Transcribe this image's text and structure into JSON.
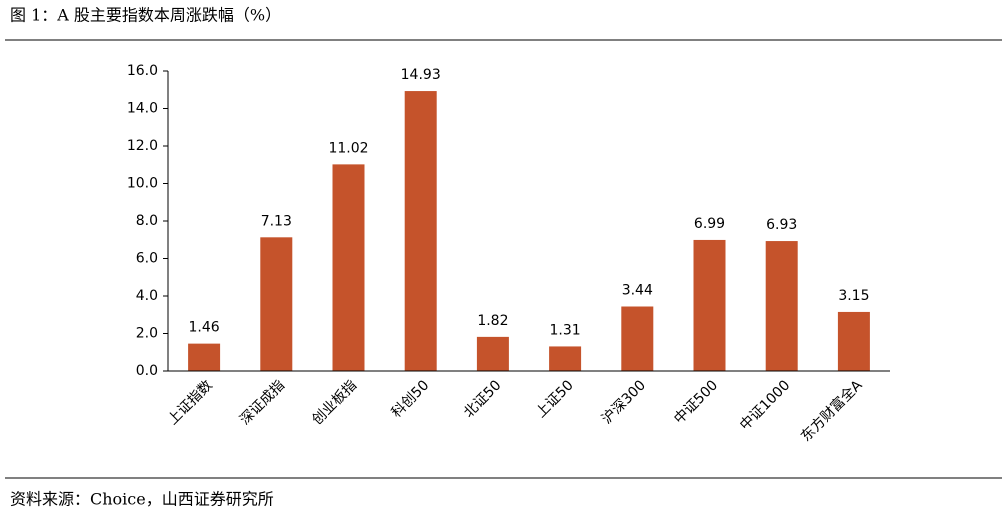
{
  "chart_data": {
    "type": "bar",
    "title": "图 1：A 股主要指数本周涨跌幅（%）",
    "source": "资料来源：Choice，山西证券研究所",
    "categories": [
      "上证指数",
      "深证成指",
      "创业板指",
      "科创50",
      "北证50",
      "上证50",
      "沪深300",
      "中证500",
      "中证1000",
      "东方财富全A"
    ],
    "values": [
      1.46,
      7.13,
      11.02,
      14.93,
      1.82,
      1.31,
      3.44,
      6.99,
      6.93,
      3.15
    ],
    "color": "#c5532b",
    "ylim": [
      0,
      16
    ],
    "yticks": [
      {
        "value": 0,
        "label": "0.0"
      },
      {
        "value": 2,
        "label": "2.0"
      },
      {
        "value": 4,
        "label": "4.0"
      },
      {
        "value": 6,
        "label": "6.0"
      },
      {
        "value": 8,
        "label": "8.0"
      },
      {
        "value": 10,
        "label": "10.0"
      },
      {
        "value": 12,
        "label": "12.0"
      },
      {
        "value": 14,
        "label": "14.0"
      },
      {
        "value": 16,
        "label": "16.0"
      }
    ],
    "grid": false
  }
}
